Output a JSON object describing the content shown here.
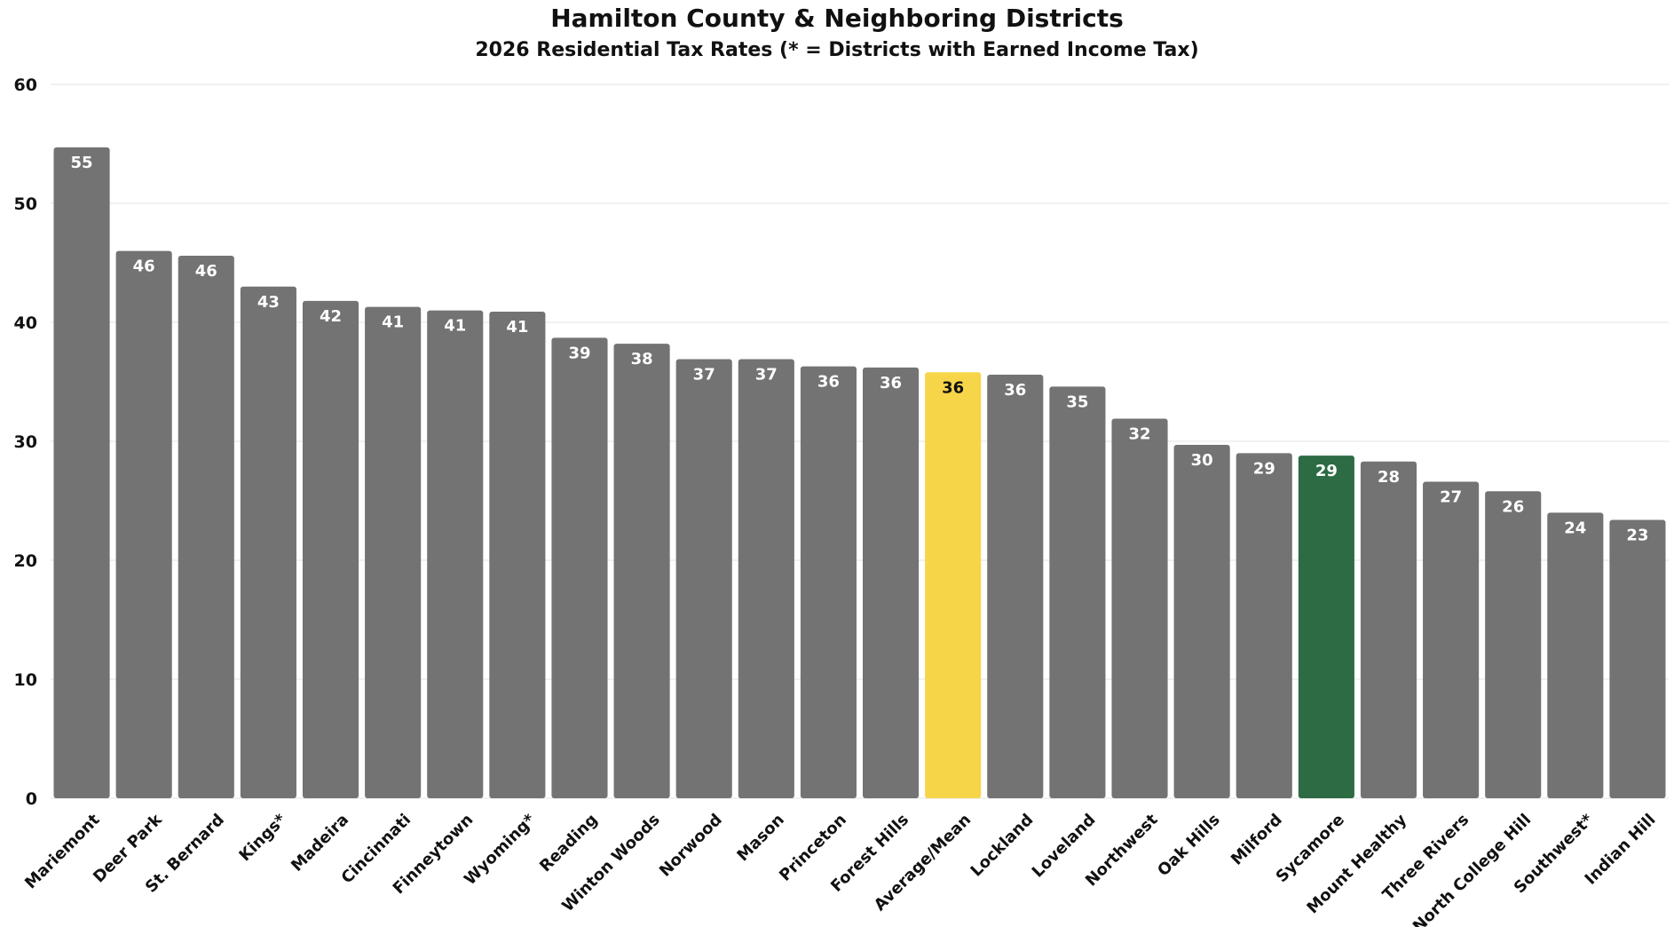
{
  "chart_data": {
    "type": "bar",
    "title": "Hamilton County & Neighboring Districts",
    "subtitle": "2026 Residential Tax Rates (* = Districts with Earned Income Tax)",
    "xlabel": "",
    "ylabel": "",
    "ylim": [
      0,
      60
    ],
    "yticks": [
      0,
      10,
      20,
      30,
      40,
      50,
      60
    ],
    "grid": true,
    "categories": [
      "Mariemont",
      "Deer Park",
      "St. Bernard",
      "Kings*",
      "Madeira",
      "Cincinnati",
      "Finneytown",
      "Wyoming*",
      "Reading",
      "Winton Woods",
      "Norwood",
      "Mason",
      "Princeton",
      "Forest Hills",
      "Average/Mean",
      "Lockland",
      "Loveland",
      "Northwest",
      "Oak Hills",
      "Milford",
      "Sycamore",
      "Mount Healthy",
      "Three Rivers",
      "North College Hill",
      "Southwest*",
      "Indian Hill"
    ],
    "values": [
      54.7,
      46.0,
      45.6,
      43.0,
      41.8,
      41.3,
      41.0,
      40.9,
      38.7,
      38.2,
      36.9,
      36.9,
      36.3,
      36.2,
      35.8,
      35.6,
      34.6,
      31.9,
      29.7,
      29.0,
      28.8,
      28.3,
      26.6,
      25.8,
      24.0,
      23.4
    ],
    "data_labels": [
      "55",
      "46",
      "46",
      "43",
      "42",
      "41",
      "41",
      "41",
      "39",
      "38",
      "37",
      "37",
      "36",
      "36",
      "36",
      "36",
      "35",
      "32",
      "30",
      "29",
      "29",
      "28",
      "27",
      "26",
      "24",
      "23"
    ],
    "colors": {
      "default": "#737373",
      "highlight_average": "#f7d548",
      "highlight_sycamore": "#2c6b44",
      "label_default": "#ffffff",
      "label_average": "#111111",
      "grid": "#e3e3e3"
    },
    "highlights": {
      "Average/Mean": "highlight_average",
      "Sycamore": "highlight_sycamore"
    }
  }
}
